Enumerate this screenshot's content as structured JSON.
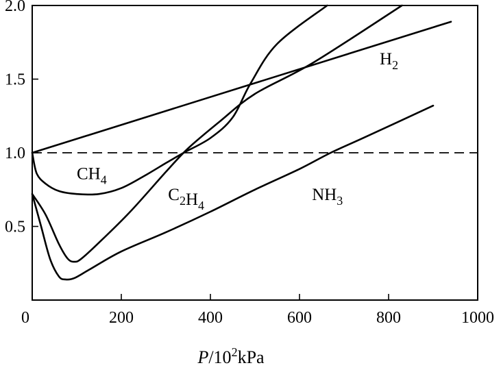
{
  "chart_data": {
    "type": "line",
    "title": "",
    "xlabel": "P/10²kPa",
    "xlabel_parts": {
      "italic": "P",
      "mid": "/10",
      "sup": "2",
      "unit": "kPa"
    },
    "ylabel": "",
    "xlim": [
      0,
      1000
    ],
    "ylim": [
      0,
      2.0
    ],
    "xticks": [
      0,
      200,
      400,
      600,
      800,
      1000
    ],
    "yticks": [
      0.5,
      1.0,
      1.5,
      2.0
    ],
    "xtick_labels": [
      "0",
      "200",
      "400",
      "600",
      "800",
      "1000"
    ],
    "ytick_labels": [
      "0.5",
      "1.0",
      "1.5",
      "2.0"
    ],
    "grid": false,
    "legend": "none",
    "reference_line": {
      "y": 1.0,
      "style": "dashed"
    },
    "series": [
      {
        "name": "H₂",
        "label_parts": {
          "base": "H",
          "sub": "2"
        },
        "label_pos": [
          780,
          1.6
        ],
        "points": [
          [
            0,
            1.0
          ],
          [
            940,
            1.89
          ]
        ]
      },
      {
        "name": "CH₄",
        "label_parts": {
          "base": "CH",
          "sub": "4"
        },
        "label_pos": [
          100,
          0.82
        ],
        "points": [
          [
            0,
            1.0
          ],
          [
            10,
            0.86
          ],
          [
            30,
            0.79
          ],
          [
            60,
            0.74
          ],
          [
            100,
            0.72
          ],
          [
            150,
            0.72
          ],
          [
            200,
            0.76
          ],
          [
            250,
            0.84
          ],
          [
            300,
            0.93
          ],
          [
            340,
            1.0
          ],
          [
            400,
            1.1
          ],
          [
            450,
            1.24
          ],
          [
            490,
            1.47
          ],
          [
            550,
            1.74
          ],
          [
            662,
            2.0
          ]
        ]
      },
      {
        "name": "C₂H₄",
        "label_parts": {
          "base1": "C",
          "sub1": "2",
          "base2": "H",
          "sub2": "4"
        },
        "label_pos": [
          305,
          0.68
        ],
        "points": [
          [
            0,
            0.72
          ],
          [
            30,
            0.58
          ],
          [
            60,
            0.38
          ],
          [
            80,
            0.28
          ],
          [
            95,
            0.26
          ],
          [
            110,
            0.28
          ],
          [
            150,
            0.39
          ],
          [
            220,
            0.6
          ],
          [
            300,
            0.87
          ],
          [
            350,
            1.03
          ],
          [
            420,
            1.21
          ],
          [
            500,
            1.4
          ],
          [
            630,
            1.61
          ],
          [
            830,
            2.0
          ]
        ]
      },
      {
        "name": "NH₃",
        "label_parts": {
          "base": "NH",
          "sub": "3"
        },
        "label_pos": [
          628,
          0.68
        ],
        "points": [
          [
            0,
            0.72
          ],
          [
            20,
            0.5
          ],
          [
            40,
            0.28
          ],
          [
            60,
            0.16
          ],
          [
            75,
            0.14
          ],
          [
            95,
            0.15
          ],
          [
            130,
            0.21
          ],
          [
            200,
            0.33
          ],
          [
            300,
            0.46
          ],
          [
            400,
            0.6
          ],
          [
            500,
            0.75
          ],
          [
            600,
            0.89
          ],
          [
            670,
            1.0
          ],
          [
            750,
            1.11
          ],
          [
            900,
            1.32
          ]
        ]
      }
    ]
  }
}
